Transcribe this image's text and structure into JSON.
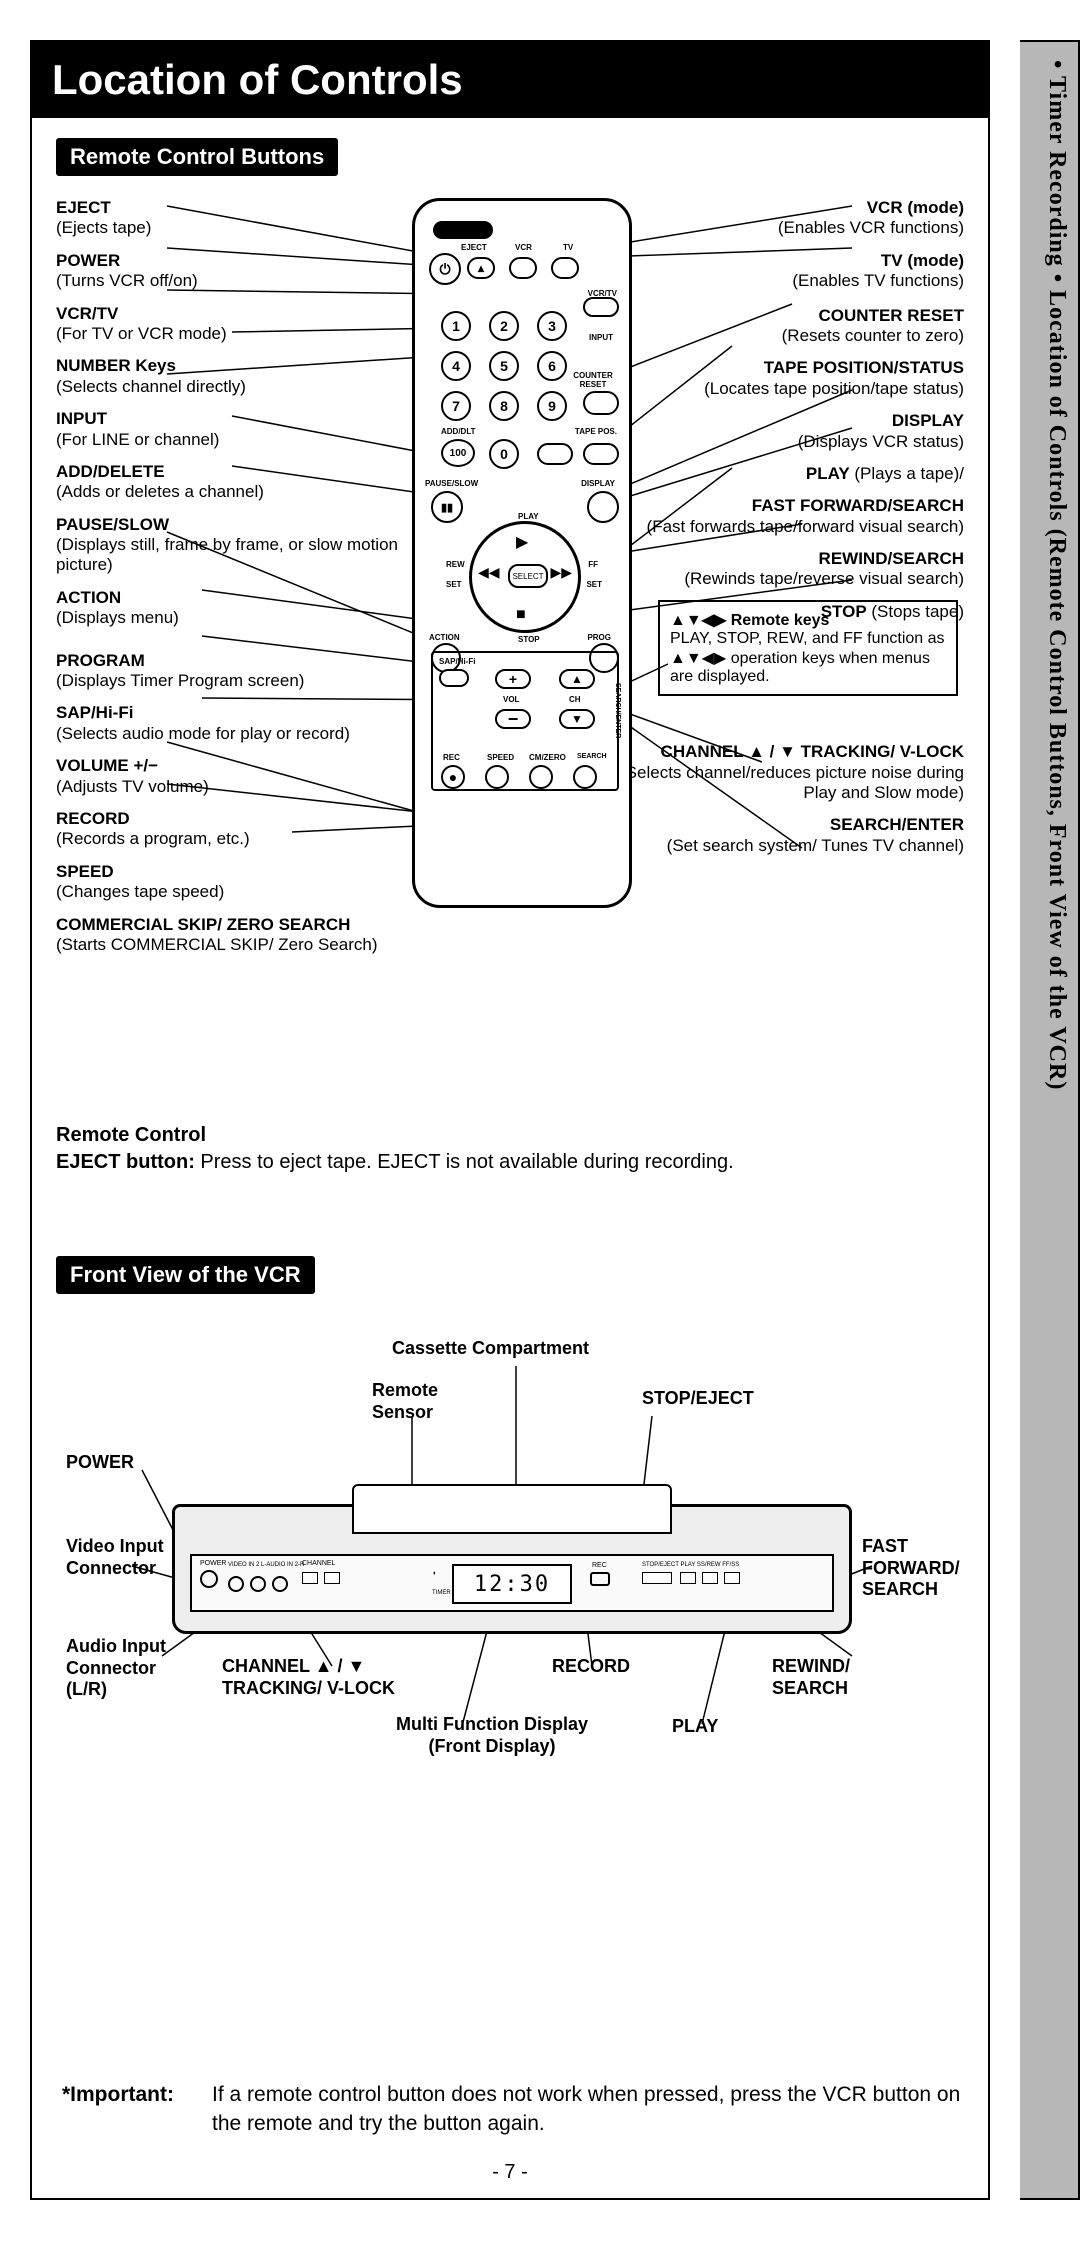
{
  "page": {
    "title": "Location of Controls",
    "section1": "Remote Control Buttons",
    "section2": "Front View of the VCR",
    "pagenum": "- 7 -",
    "sidetab": "• Timer Recording • Location of Controls (Remote Control Buttons, Front View of the VCR)"
  },
  "remote_left": [
    {
      "t": "EJECT",
      "d": "(Ejects tape)"
    },
    {
      "t": "POWER",
      "d": "(Turns VCR off/on)"
    },
    {
      "t": "VCR/TV",
      "d": "(For TV or VCR mode)"
    },
    {
      "t": "NUMBER Keys",
      "d": "(Selects channel directly)"
    },
    {
      "t": "INPUT",
      "d": "(For LINE or channel)"
    },
    {
      "t": "ADD/DELETE",
      "d": "(Adds or deletes a channel)"
    },
    {
      "t": "PAUSE/SLOW",
      "d": "(Displays still, frame by frame, or slow motion picture)"
    },
    {
      "t": "ACTION",
      "d": "(Displays menu)"
    },
    {
      "t": "PROGRAM",
      "d": "(Displays Timer Program screen)"
    },
    {
      "t": "SAP/Hi-Fi",
      "d": "(Selects audio mode for play or record)"
    },
    {
      "t": "VOLUME +/−",
      "d": "(Adjusts TV volume)"
    },
    {
      "t": "RECORD",
      "d": "(Records a program, etc.)"
    },
    {
      "t": "SPEED",
      "d": "(Changes tape speed)"
    },
    {
      "t": "COMMERCIAL SKIP/ ZERO SEARCH",
      "d": "(Starts COMMERCIAL SKIP/ Zero Search)"
    }
  ],
  "remote_right": [
    {
      "t": "VCR (mode)",
      "d": "(Enables VCR functions)"
    },
    {
      "t": "TV (mode)",
      "d": "(Enables TV functions)"
    },
    {
      "t": "COUNTER RESET",
      "d": "(Resets counter to zero)"
    },
    {
      "t": "TAPE POSITION/STATUS",
      "d": "(Locates tape position/tape status)"
    },
    {
      "t": "DISPLAY",
      "d": "(Displays VCR status)"
    },
    {
      "t": "PLAY",
      "d": "(Plays a tape)/"
    },
    {
      "t": "FAST FORWARD/SEARCH",
      "d": "(Fast forwards tape/forward visual search)"
    },
    {
      "t": "REWIND/SEARCH",
      "d": "(Rewinds tape/reverse visual search)"
    },
    {
      "t": "STOP",
      "d": "(Stops tape)"
    },
    {
      "t": "CHANNEL ▲ / ▼ TRACKING/ V-LOCK",
      "d": "(Selects channel/reduces picture noise during Play and Slow mode)"
    },
    {
      "t": "SEARCH/ENTER",
      "d": "(Set search system/ Tunes TV channel)"
    }
  ],
  "remote_keybox": {
    "title": "▲▼◀▶ Remote keys",
    "body": "PLAY, STOP, REW, and FF function as ▲▼◀▶ operation keys when menus are displayed."
  },
  "remote_note": {
    "h1": "Remote Control",
    "h2": "EJECT button:",
    "d": " Press to eject tape. EJECT is not available during recording."
  },
  "remote_inner": {
    "eject": "EJECT",
    "vcr": "VCR",
    "tv": "TV",
    "vcrtv": "VCR/TV",
    "input": "INPUT",
    "counter": "COUNTER RESET",
    "adddel": "ADD/DLT",
    "tapepos": "TAPE POS.",
    "pause": "PAUSE/SLOW",
    "display": "DISPLAY",
    "play": "PLAY",
    "stop": "STOP",
    "rew": "REW",
    "ff": "FF",
    "set": "SET",
    "select": "SELECT",
    "action": "ACTION",
    "prog": "PROG",
    "sap": "SAP/Hi-Fi",
    "vol": "VOL",
    "ch": "CH",
    "search": "SEARCH/ENTER",
    "rec": "REC",
    "speed": "SPEED",
    "cmzero": "CM/ZERO",
    "n100": "100"
  },
  "vcr_labels": {
    "cassette": "Cassette Compartment",
    "sensor": "Remote Sensor",
    "stopeject": "STOP/EJECT",
    "power": "POWER",
    "video": "Video Input Connector",
    "audio": "Audio Input Connector (L/R)",
    "channel": "CHANNEL ▲ / ▼ TRACKING/ V-LOCK",
    "mfd1": "Multi Function Display",
    "mfd2": "(Front Display)",
    "record": "RECORD",
    "play": "PLAY",
    "rewind": "REWIND/ SEARCH",
    "ff": "FAST FORWARD/ SEARCH",
    "clock": "12:30"
  },
  "important": {
    "h": "*Important:",
    "t": "If a remote control button does not work when pressed, press the VCR button on the remote and try the button again."
  },
  "colors": {
    "black": "#000000",
    "gray": "#b7b7b7",
    "remote_bg": "#ffffff"
  }
}
